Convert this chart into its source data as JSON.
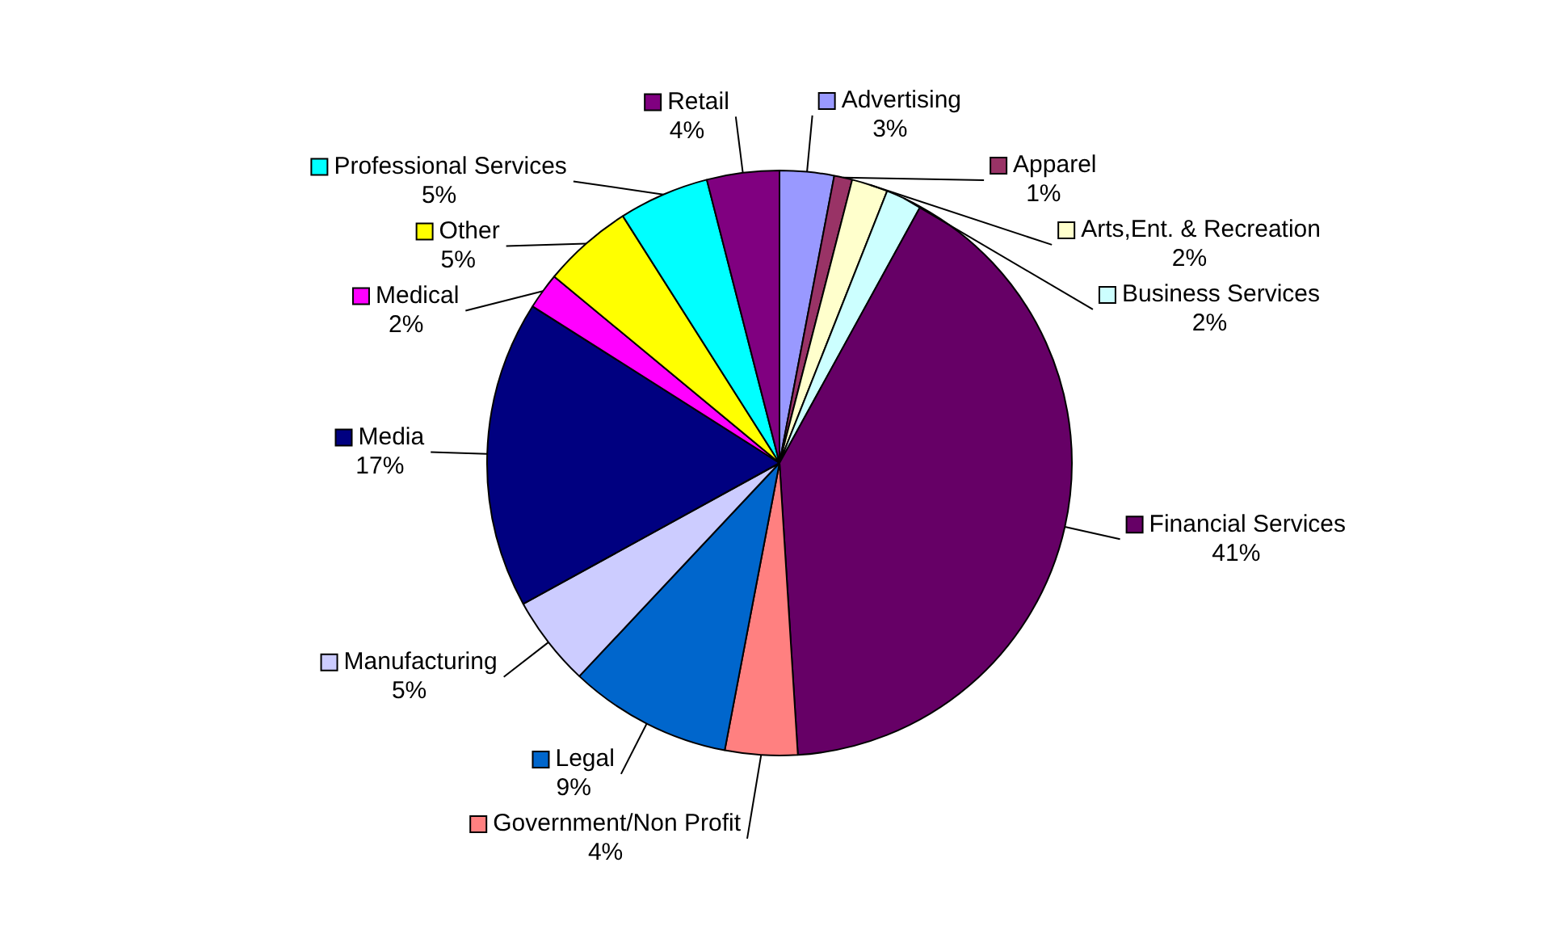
{
  "chart_data": {
    "type": "pie",
    "categories": [
      "Advertising",
      "Apparel",
      "Arts,Ent. & Recreation",
      "Business Services",
      "Financial Services",
      "Government/Non Profit",
      "Legal",
      "Manufacturing",
      "Media",
      "Medical",
      "Other",
      "Professional Services",
      "Retail"
    ],
    "values": [
      3,
      1,
      2,
      2,
      41,
      4,
      9,
      5,
      17,
      2,
      5,
      5,
      4
    ],
    "value_labels": [
      "3%",
      "1%",
      "2%",
      "2%",
      "41%",
      "4%",
      "9%",
      "5%",
      "17%",
      "2%",
      "5%",
      "5%",
      "4%"
    ],
    "colors": [
      "#9999ff",
      "#993366",
      "#ffffcc",
      "#ccffff",
      "#660066",
      "#ff8080",
      "#0066cc",
      "#ccccff",
      "#000080",
      "#ff00ff",
      "#ffff00",
      "#00ffff",
      "#800080"
    ],
    "legend": "right"
  }
}
